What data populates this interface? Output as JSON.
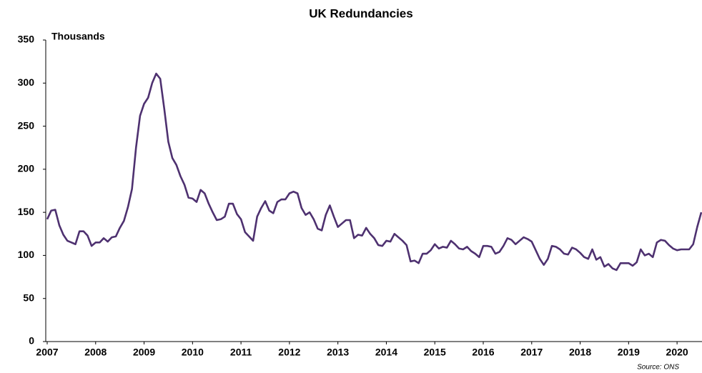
{
  "chart_data": {
    "type": "line",
    "title": "UK Redundancies",
    "y_axis_label": "Thousands",
    "source": "Source: ONS",
    "color": "#4e3170",
    "categories": [
      "2007",
      null,
      null,
      null,
      null,
      null,
      null,
      null,
      null,
      null,
      null,
      null,
      "2008",
      null,
      null,
      null,
      null,
      null,
      null,
      null,
      null,
      null,
      null,
      null,
      "2009",
      null,
      null,
      null,
      null,
      null,
      null,
      null,
      null,
      null,
      null,
      null,
      "2010",
      null,
      null,
      null,
      null,
      null,
      null,
      null,
      null,
      null,
      null,
      null,
      "2011",
      null,
      null,
      null,
      null,
      null,
      null,
      null,
      null,
      null,
      null,
      null,
      "2012",
      null,
      null,
      null,
      null,
      null,
      null,
      null,
      null,
      null,
      null,
      null,
      "2013",
      null,
      null,
      null,
      null,
      null,
      null,
      null,
      null,
      null,
      null,
      null,
      "2014",
      null,
      null,
      null,
      null,
      null,
      null,
      null,
      null,
      null,
      null,
      null,
      "2015",
      null,
      null,
      null,
      null,
      null,
      null,
      null,
      null,
      null,
      null,
      null,
      "2016",
      null,
      null,
      null,
      null,
      null,
      null,
      null,
      null,
      null,
      null,
      null,
      "2017",
      null,
      null,
      null,
      null,
      null,
      null,
      null,
      null,
      null,
      null,
      null,
      "2018",
      null,
      null,
      null,
      null,
      null,
      null,
      null,
      null,
      null,
      null,
      null,
      "2019",
      null,
      null,
      null,
      null,
      null,
      null,
      null,
      null,
      null,
      null,
      null,
      "2020",
      null,
      null,
      null,
      null,
      null,
      null
    ],
    "values": [
      142,
      152,
      153,
      135,
      124,
      117,
      115,
      113,
      128,
      128,
      123,
      111,
      115,
      115,
      120,
      116,
      121,
      122,
      132,
      140,
      156,
      177,
      225,
      262,
      276,
      283,
      300,
      311,
      305,
      270,
      232,
      213,
      205,
      192,
      182,
      167,
      166,
      162,
      176,
      172,
      160,
      150,
      141,
      142,
      145,
      160,
      160,
      148,
      142,
      127,
      122,
      117,
      145,
      155,
      163,
      152,
      149,
      162,
      165,
      165,
      172,
      174,
      172,
      155,
      147,
      150,
      142,
      131,
      129,
      147,
      158,
      145,
      133,
      137,
      141,
      141,
      120,
      124,
      123,
      132,
      125,
      120,
      112,
      111,
      117,
      116,
      125,
      121,
      117,
      112,
      93,
      94,
      91,
      102,
      102,
      106,
      113,
      108,
      110,
      109,
      117,
      113,
      108,
      107,
      110,
      105,
      102,
      98,
      111,
      111,
      110,
      102,
      104,
      111,
      120,
      118,
      113,
      117,
      121,
      119,
      116,
      106,
      96,
      89,
      96,
      111,
      110,
      107,
      102,
      101,
      109,
      107,
      103,
      98,
      96,
      107,
      95,
      98,
      87,
      90,
      85,
      83,
      91,
      91,
      91,
      88,
      92,
      107,
      100,
      102,
      98,
      115,
      118,
      117,
      112,
      108,
      106,
      107,
      107,
      107,
      113,
      133,
      150
    ],
    "ylim": [
      0,
      350
    ],
    "yticks": [
      0,
      50,
      100,
      150,
      200,
      250,
      300,
      350
    ],
    "grid": false
  }
}
